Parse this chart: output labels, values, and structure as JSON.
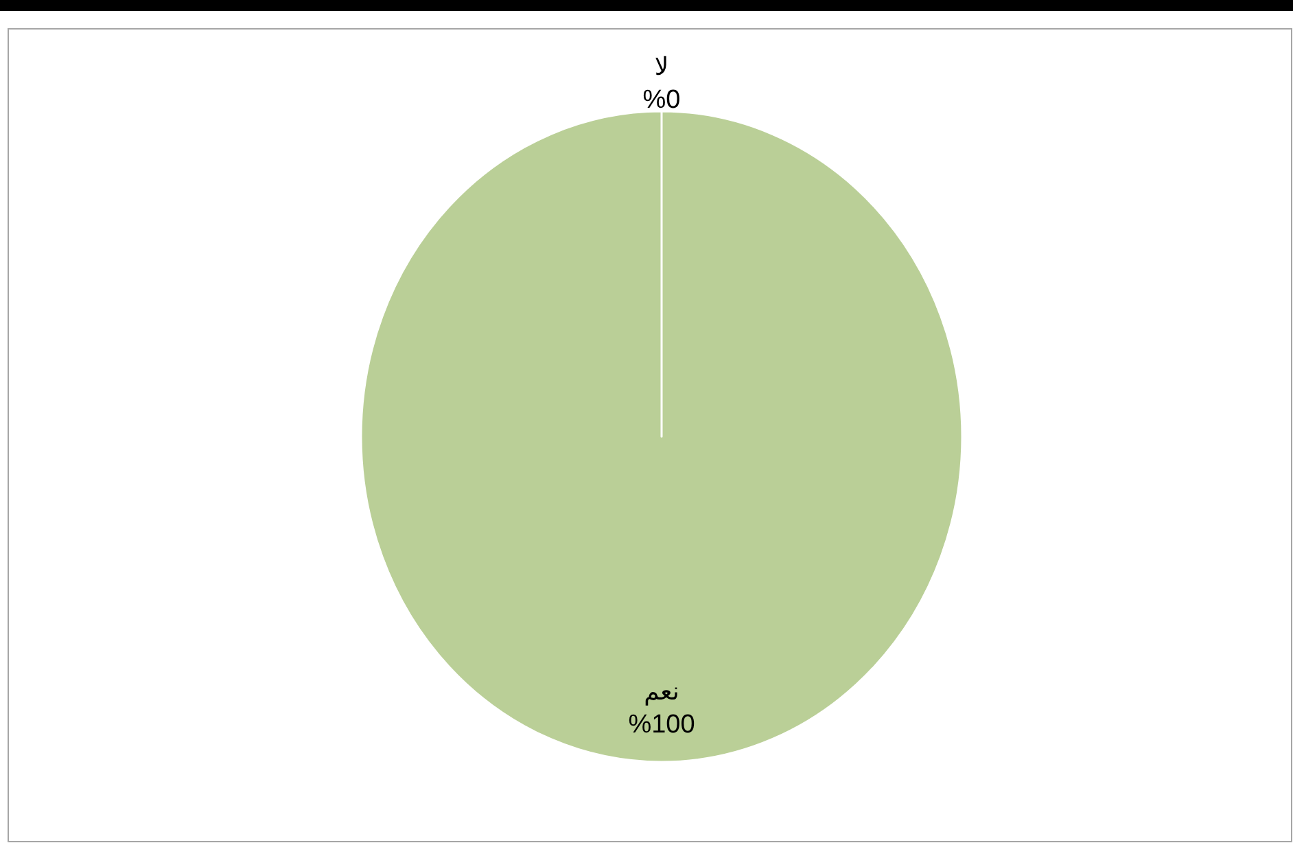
{
  "chart_data": {
    "type": "pie",
    "categories": [
      "لا",
      "نعم"
    ],
    "values": [
      0,
      100
    ],
    "colors": [
      "#4f81bd",
      "#bacf97"
    ],
    "value_labels": [
      "%0",
      "%100"
    ]
  }
}
